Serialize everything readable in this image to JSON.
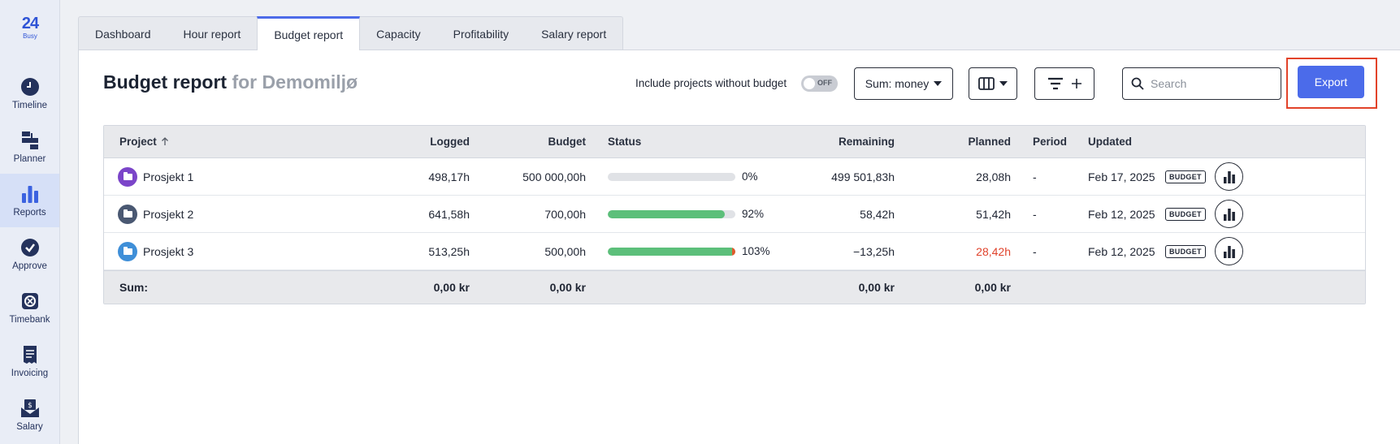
{
  "app": {
    "logo_mark": "24",
    "logo_sub": "Busy"
  },
  "sidebar": {
    "items": [
      {
        "label": "Timeline",
        "icon": "clock-icon",
        "active": false
      },
      {
        "label": "Planner",
        "icon": "planner-icon",
        "active": false
      },
      {
        "label": "Reports",
        "icon": "bar-chart-icon",
        "active": true
      },
      {
        "label": "Approve",
        "icon": "check-circle-icon",
        "active": false
      },
      {
        "label": "Timebank",
        "icon": "timebank-icon",
        "active": false
      },
      {
        "label": "Invoicing",
        "icon": "invoice-icon",
        "active": false
      },
      {
        "label": "Salary",
        "icon": "salary-icon",
        "active": false
      }
    ]
  },
  "tabs": [
    {
      "label": "Dashboard",
      "active": false
    },
    {
      "label": "Hour report",
      "active": false
    },
    {
      "label": "Budget report",
      "active": true
    },
    {
      "label": "Capacity",
      "active": false
    },
    {
      "label": "Profitability",
      "active": false
    },
    {
      "label": "Salary report",
      "active": false
    }
  ],
  "header": {
    "title": "Budget report",
    "subtitle": "for Demomiljø",
    "include_label": "Include projects without budget",
    "toggle_text": "OFF",
    "sum_select": "Sum: money",
    "search_placeholder": "Search",
    "export_label": "Export"
  },
  "colors": {
    "accent": "#4b6bea",
    "highlight": "#e2432a",
    "progress": "#5cbf7a",
    "negative": "#e0432c"
  },
  "table": {
    "columns": {
      "project": "Project",
      "logged": "Logged",
      "budget": "Budget",
      "status": "Status",
      "remaining": "Remaining",
      "planned": "Planned",
      "period": "Period",
      "updated": "Updated"
    },
    "rows": [
      {
        "project": "Prosjekt 1",
        "color": "#7b45c9",
        "logged": "498,17h",
        "budget": "500 000,00h",
        "progress": 0.0,
        "pct": "0%",
        "remaining": "499 501,83h",
        "planned": "28,08h",
        "planned_over": false,
        "period": "-",
        "updated": "Feb 17, 2025",
        "badge": "BUDGET"
      },
      {
        "project": "Prosjekt 2",
        "color": "#4a5872",
        "logged": "641,58h",
        "budget": "700,00h",
        "progress": 0.92,
        "pct": "92%",
        "remaining": "58,42h",
        "planned": "51,42h",
        "planned_over": false,
        "period": "-",
        "updated": "Feb 12, 2025",
        "badge": "BUDGET"
      },
      {
        "project": "Prosjekt 3",
        "color": "#3f8fd8",
        "logged": "513,25h",
        "budget": "500,00h",
        "progress": 1.0,
        "pct": "103%",
        "remaining": "−13,25h",
        "planned": "28,42h",
        "planned_over": true,
        "period": "-",
        "updated": "Feb 12, 2025",
        "badge": "BUDGET"
      }
    ],
    "footer": {
      "label": "Sum:",
      "logged": "0,00 kr",
      "budget": "0,00 kr",
      "remaining": "0,00 kr",
      "planned": "0,00 kr"
    }
  }
}
